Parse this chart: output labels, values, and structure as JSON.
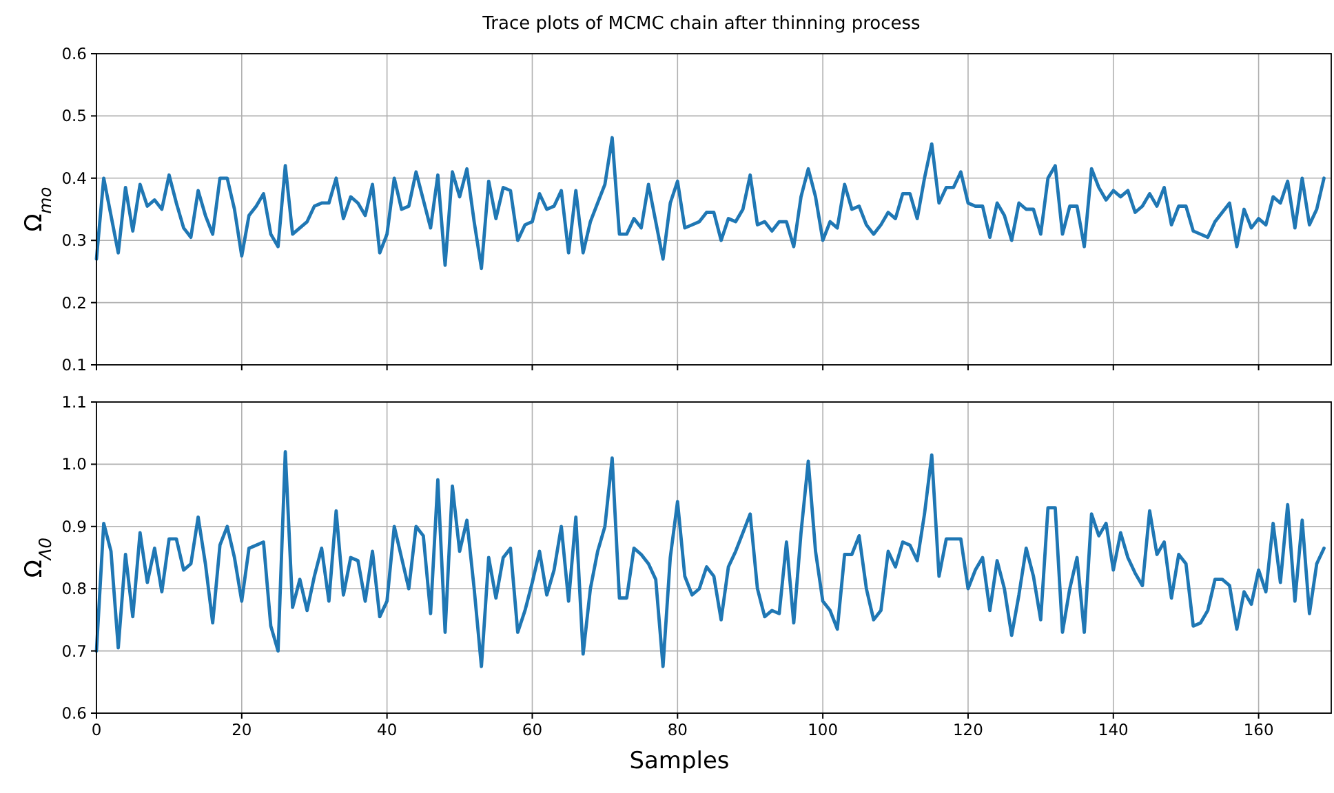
{
  "chart_data": [
    {
      "type": "line",
      "title": "Trace plots of MCMC chain after thinning process",
      "ylabel": "Ω$_{mo}$",
      "xlim": [
        0,
        170
      ],
      "xticks": [
        0,
        20,
        40,
        60,
        80,
        100,
        120,
        140,
        160
      ],
      "ylim": [
        0.1,
        0.6
      ],
      "yticks": [
        0.1,
        0.2,
        0.3,
        0.4,
        0.5,
        0.6
      ],
      "grid": true,
      "tick_labels": "y",
      "line_style": "solid",
      "x": [
        0,
        1,
        2,
        3,
        4,
        5,
        6,
        7,
        8,
        9,
        10,
        11,
        12,
        13,
        14,
        15,
        16,
        17,
        18,
        19,
        20,
        21,
        22,
        23,
        24,
        25,
        26,
        27,
        28,
        29,
        30,
        31,
        32,
        33,
        34,
        35,
        36,
        37,
        38,
        39,
        40,
        41,
        42,
        43,
        44,
        45,
        46,
        47,
        48,
        49,
        50,
        51,
        52,
        53,
        54,
        55,
        56,
        57,
        58,
        59,
        60,
        61,
        62,
        63,
        64,
        65,
        66,
        67,
        68,
        69,
        70,
        71,
        72,
        73,
        74,
        75,
        76,
        77,
        78,
        79,
        80,
        81,
        82,
        83,
        84,
        85,
        86,
        87,
        88,
        89,
        90,
        91,
        92,
        93,
        94,
        95,
        96,
        97,
        98,
        99,
        100,
        101,
        102,
        103,
        104,
        105,
        106,
        107,
        108,
        109,
        110,
        111,
        112,
        113,
        114,
        115,
        116,
        117,
        118,
        119,
        120,
        121,
        122,
        123,
        124,
        125,
        126,
        127,
        128,
        129,
        130,
        131,
        132,
        133,
        134,
        135,
        136,
        137,
        138,
        139,
        140,
        141,
        142,
        143,
        144,
        145,
        146,
        147,
        148,
        149,
        150,
        151,
        152,
        153,
        154,
        155,
        156,
        157,
        158,
        159,
        160,
        161,
        162,
        163,
        164,
        165,
        166,
        167,
        168,
        169
      ],
      "series": [
        {
          "color": "#1f77b4",
          "values": [
            0.27,
            0.4,
            0.34,
            0.28,
            0.385,
            0.315,
            0.39,
            0.355,
            0.365,
            0.35,
            0.405,
            0.36,
            0.32,
            0.305,
            0.38,
            0.34,
            0.31,
            0.4,
            0.4,
            0.35,
            0.275,
            0.34,
            0.355,
            0.375,
            0.31,
            0.29,
            0.42,
            0.31,
            0.32,
            0.33,
            0.355,
            0.36,
            0.36,
            0.4,
            0.335,
            0.37,
            0.36,
            0.34,
            0.39,
            0.28,
            0.31,
            0.4,
            0.35,
            0.355,
            0.41,
            0.365,
            0.32,
            0.405,
            0.26,
            0.41,
            0.37,
            0.415,
            0.33,
            0.255,
            0.395,
            0.335,
            0.385,
            0.38,
            0.3,
            0.325,
            0.33,
            0.375,
            0.35,
            0.355,
            0.38,
            0.28,
            0.38,
            0.28,
            0.33,
            0.36,
            0.39,
            0.465,
            0.31,
            0.31,
            0.335,
            0.32,
            0.39,
            0.33,
            0.27,
            0.36,
            0.395,
            0.32,
            0.325,
            0.33,
            0.345,
            0.345,
            0.3,
            0.335,
            0.33,
            0.35,
            0.405,
            0.325,
            0.33,
            0.315,
            0.33,
            0.33,
            0.29,
            0.37,
            0.415,
            0.37,
            0.3,
            0.33,
            0.32,
            0.39,
            0.35,
            0.355,
            0.325,
            0.31,
            0.325,
            0.345,
            0.335,
            0.375,
            0.375,
            0.335,
            0.4,
            0.455,
            0.36,
            0.385,
            0.385,
            0.41,
            0.36,
            0.355,
            0.355,
            0.305,
            0.36,
            0.34,
            0.3,
            0.36,
            0.35,
            0.35,
            0.31,
            0.4,
            0.42,
            0.31,
            0.355,
            0.355,
            0.29,
            0.415,
            0.385,
            0.365,
            0.38,
            0.37,
            0.38,
            0.345,
            0.355,
            0.375,
            0.355,
            0.385,
            0.325,
            0.355,
            0.355,
            0.315,
            0.31,
            0.305,
            0.33,
            0.345,
            0.36,
            0.29,
            0.35,
            0.32,
            0.335,
            0.325,
            0.37,
            0.36,
            0.395,
            0.32,
            0.4,
            0.325,
            0.35,
            0.4
          ]
        }
      ]
    },
    {
      "type": "line",
      "xlabel": "Samples",
      "ylabel": "Ω$_{Λ0}$",
      "xlim": [
        0,
        170
      ],
      "xticks": [
        0,
        20,
        40,
        60,
        80,
        100,
        120,
        140,
        160
      ],
      "ylim": [
        0.6,
        1.1
      ],
      "yticks": [
        0.6,
        0.7,
        0.8,
        0.9,
        {
          "value": 1,
          "label": "1.0"
        },
        1.1
      ],
      "grid": true,
      "line_style": "solid",
      "x": [
        0,
        1,
        2,
        3,
        4,
        5,
        6,
        7,
        8,
        9,
        10,
        11,
        12,
        13,
        14,
        15,
        16,
        17,
        18,
        19,
        20,
        21,
        22,
        23,
        24,
        25,
        26,
        27,
        28,
        29,
        30,
        31,
        32,
        33,
        34,
        35,
        36,
        37,
        38,
        39,
        40,
        41,
        42,
        43,
        44,
        45,
        46,
        47,
        48,
        49,
        50,
        51,
        52,
        53,
        54,
        55,
        56,
        57,
        58,
        59,
        60,
        61,
        62,
        63,
        64,
        65,
        66,
        67,
        68,
        69,
        70,
        71,
        72,
        73,
        74,
        75,
        76,
        77,
        78,
        79,
        80,
        81,
        82,
        83,
        84,
        85,
        86,
        87,
        88,
        89,
        90,
        91,
        92,
        93,
        94,
        95,
        96,
        97,
        98,
        99,
        100,
        101,
        102,
        103,
        104,
        105,
        106,
        107,
        108,
        109,
        110,
        111,
        112,
        113,
        114,
        115,
        116,
        117,
        118,
        119,
        120,
        121,
        122,
        123,
        124,
        125,
        126,
        127,
        128,
        129,
        130,
        131,
        132,
        133,
        134,
        135,
        136,
        137,
        138,
        139,
        140,
        141,
        142,
        143,
        144,
        145,
        146,
        147,
        148,
        149,
        150,
        151,
        152,
        153,
        154,
        155,
        156,
        157,
        158,
        159,
        160,
        161,
        162,
        163,
        164,
        165,
        166,
        167,
        168,
        169
      ],
      "series": [
        {
          "color": "#1f77b4",
          "values": [
            0.7,
            0.905,
            0.86,
            0.705,
            0.855,
            0.755,
            0.89,
            0.81,
            0.865,
            0.795,
            0.88,
            0.88,
            0.83,
            0.84,
            0.915,
            0.84,
            0.745,
            0.87,
            0.9,
            0.85,
            0.78,
            0.865,
            0.87,
            0.875,
            0.74,
            0.7,
            1.02,
            0.77,
            0.815,
            0.765,
            0.82,
            0.865,
            0.78,
            0.925,
            0.79,
            0.85,
            0.845,
            0.78,
            0.86,
            0.755,
            0.78,
            0.9,
            0.85,
            0.8,
            0.9,
            0.885,
            0.76,
            0.975,
            0.73,
            0.965,
            0.86,
            0.91,
            0.8,
            0.675,
            0.85,
            0.785,
            0.85,
            0.865,
            0.73,
            0.765,
            0.81,
            0.86,
            0.79,
            0.83,
            0.9,
            0.78,
            0.915,
            0.695,
            0.8,
            0.86,
            0.9,
            1.01,
            0.785,
            0.785,
            0.865,
            0.855,
            0.84,
            0.815,
            0.675,
            0.85,
            0.94,
            0.82,
            0.79,
            0.8,
            0.835,
            0.82,
            0.75,
            0.835,
            0.86,
            0.89,
            0.92,
            0.8,
            0.755,
            0.765,
            0.76,
            0.875,
            0.745,
            0.89,
            1.005,
            0.86,
            0.78,
            0.765,
            0.735,
            0.855,
            0.855,
            0.885,
            0.8,
            0.75,
            0.765,
            0.86,
            0.835,
            0.875,
            0.87,
            0.845,
            0.92,
            1.015,
            0.82,
            0.88,
            0.88,
            0.88,
            0.8,
            0.83,
            0.85,
            0.765,
            0.845,
            0.8,
            0.725,
            0.79,
            0.865,
            0.82,
            0.75,
            0.93,
            0.93,
            0.73,
            0.8,
            0.85,
            0.73,
            0.92,
            0.885,
            0.905,
            0.83,
            0.89,
            0.85,
            0.825,
            0.805,
            0.925,
            0.855,
            0.875,
            0.785,
            0.855,
            0.84,
            0.74,
            0.745,
            0.765,
            0.815,
            0.815,
            0.805,
            0.735,
            0.795,
            0.775,
            0.83,
            0.795,
            0.905,
            0.81,
            0.935,
            0.78,
            0.91,
            0.76,
            0.84,
            0.865
          ]
        }
      ]
    }
  ]
}
